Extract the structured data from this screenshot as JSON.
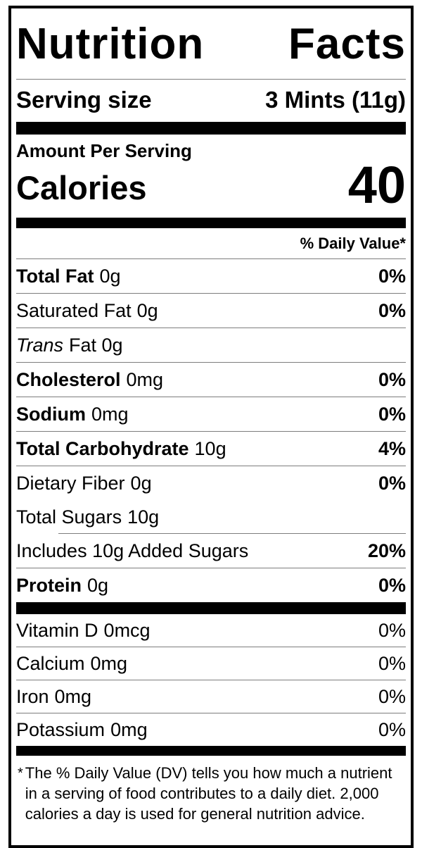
{
  "label": {
    "title": "Nutrition Facts",
    "serving": {
      "label": "Serving size",
      "value": "3 Mints (11g)"
    },
    "amount_per_serving": "Amount Per Serving",
    "calories": {
      "label": "Calories",
      "value": "40"
    },
    "daily_value_header": "% Daily Value*",
    "nutrients": [
      {
        "name": "Total Fat",
        "amount": "0g",
        "dv": "0%"
      },
      {
        "name": "Saturated Fat",
        "amount": "0g",
        "dv": "0%"
      },
      {
        "name": "Trans",
        "amount": "Fat 0g",
        "dv": ""
      },
      {
        "name": "Cholesterol",
        "amount": "0mg",
        "dv": "0%"
      },
      {
        "name": "Sodium",
        "amount": "0mg",
        "dv": "0%"
      },
      {
        "name": "Total Carbohydrate",
        "amount": "10g",
        "dv": "4%"
      },
      {
        "name": "Dietary Fiber",
        "amount": "0g",
        "dv": "0%"
      },
      {
        "name": "Total Sugars",
        "amount": "10g",
        "dv": ""
      },
      {
        "name": "Includes 10g Added Sugars",
        "amount": "",
        "dv": "20%"
      },
      {
        "name": "Protein",
        "amount": "0g",
        "dv": "0%"
      }
    ],
    "vitamins": [
      {
        "name": "Vitamin D",
        "amount": "0mcg",
        "dv": "0%"
      },
      {
        "name": "Calcium",
        "amount": "0mg",
        "dv": "0%"
      },
      {
        "name": "Iron",
        "amount": "0mg",
        "dv": "0%"
      },
      {
        "name": "Potassium",
        "amount": "0mg",
        "dv": "0%"
      }
    ],
    "footnote_marker": "*",
    "footnote": "The % Daily Value (DV) tells you how much a nutrient in a serving of food contributes to a daily diet. 2,000 calories a day is used for general nutrition advice."
  },
  "colors": {
    "text": "#000000",
    "background": "#ffffff",
    "divider": "#7d7d7d",
    "bar": "#000000"
  }
}
